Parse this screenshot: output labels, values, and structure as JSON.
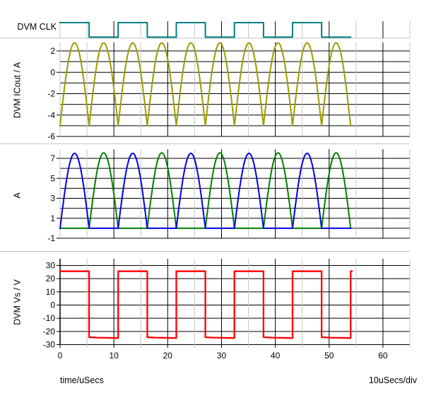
{
  "window": {
    "kind": "waveform-viewer"
  },
  "footer": {
    "x_axis_title": "time/uSecs",
    "scale_per_div": "10uSecs/div"
  },
  "chart_data": {
    "type": "line",
    "title": "",
    "grid": "on",
    "x_axis": {
      "label": "time/uSecs",
      "units": "uSecs",
      "range_us": [
        0,
        65
      ],
      "tick_labels": [
        0,
        10,
        20,
        30,
        40,
        50,
        60
      ],
      "minor_step_us": 5,
      "major_step_us": 10,
      "per_div": "10uSecs/div"
    },
    "colors": {
      "clock": "#007f80",
      "icout": "#9c9c00",
      "current_a": "#0000e6",
      "current_b": "#008000",
      "vs": "#ff0000",
      "grid_major": "#000000",
      "grid_minor": "#c6c6c6",
      "separator": "#c0c0c0",
      "text": "#000000"
    },
    "panels": [
      {
        "id": "clock",
        "label": "DVM CLK",
        "signal_type": "digital",
        "color": "#007f80",
        "period_us": 10.8,
        "duty_cycle": 0.5,
        "t_end_us": 54,
        "high_intervals_us": [
          [
            0,
            5.4
          ],
          [
            10.8,
            16.2
          ],
          [
            21.6,
            27.0
          ],
          [
            32.4,
            37.8
          ],
          [
            43.2,
            48.6
          ]
        ]
      },
      {
        "id": "icout",
        "ylabel": "DVM ICout / A",
        "color": "#9c9c00",
        "ylim": [
          -6.2,
          2.8
        ],
        "gridline_values": [
          2,
          1,
          0,
          -1,
          -2,
          -3,
          -4,
          -5,
          -6
        ],
        "tick_labels": [
          2,
          0,
          -2,
          -4,
          -6
        ],
        "waveform": {
          "shape": "rectified_sine",
          "arc_period_us": 5.4,
          "min": -5,
          "peak": 2.75,
          "t_start_us": 0,
          "t_end_us": 54
        }
      },
      {
        "id": "switch_currents",
        "ylabel": "A",
        "ylim": [
          -1.4,
          8.0
        ],
        "gridline_values": [
          7,
          6,
          5,
          4,
          3,
          2,
          1,
          0,
          -1
        ],
        "tick_labels": [
          7,
          5,
          3,
          1,
          -1
        ],
        "series": [
          {
            "name": "current_b",
            "color": "#008000",
            "shape": "half_sine_arcs",
            "arc_period_us": 5.4,
            "active_half": "odd",
            "base": 0,
            "peak": 7.55,
            "t_end_us": 54
          },
          {
            "name": "current_a",
            "color": "#0000e6",
            "shape": "half_sine_arcs",
            "arc_period_us": 5.4,
            "active_half": "even",
            "base": 0,
            "peak": 7.5,
            "t_end_us": 54
          }
        ]
      },
      {
        "id": "vs",
        "ylabel": "DVM Vs / V",
        "color": "#ff0000",
        "ylim": [
          -33,
          35
        ],
        "gridline_values": [
          30,
          20,
          10,
          0,
          -10,
          -20,
          -30
        ],
        "tick_labels": [
          30,
          20,
          10,
          0,
          -10,
          -20,
          -30
        ],
        "waveform": {
          "shape": "square",
          "high": 25.6,
          "low_start": -24.4,
          "low_end": -25.0,
          "period_us": 10.8,
          "duty_cycle": 0.5,
          "t_end_us": 54.2
        }
      }
    ]
  },
  "panel_labels": {
    "clock": "DVM CLK",
    "icout": "DVM ICout / A",
    "switch_currents": "A",
    "vs": "DVM Vs / V"
  }
}
